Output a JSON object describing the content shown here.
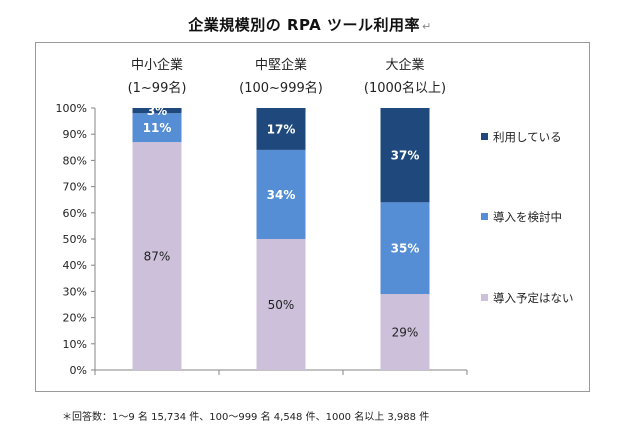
{
  "title": "企業規模別の RPA ツール利用率",
  "title_mark": "↵",
  "footnote": "＊回答数：1～9 名 15,734 件、100～999 名 4,548 件、1000 名以上 3,988 件",
  "chart_data": {
    "type": "bar",
    "stacked": true,
    "categories": [
      "中小企業",
      "中堅企業",
      "大企業"
    ],
    "category_sublabels": [
      "(1~99名)",
      "(100~999名)",
      "(1000名以上)"
    ],
    "series": [
      {
        "name": "導入予定はない",
        "values": [
          87,
          50,
          29
        ],
        "labels": [
          "87%",
          "50%",
          "29%"
        ],
        "color": "#ccc0da",
        "label_color": "#222222"
      },
      {
        "name": "導入を検討中",
        "values": [
          11,
          34,
          35
        ],
        "labels": [
          "11%",
          "34%",
          "35%"
        ],
        "color": "#558ed5",
        "label_color": "#ffffff"
      },
      {
        "name": "利用している",
        "values": [
          3,
          17,
          37
        ],
        "labels": [
          "3%",
          "17%",
          "37%"
        ],
        "color": "#1f497d",
        "label_color": "#ffffff"
      }
    ],
    "legend_order": [
      "利用している",
      "導入を検討中",
      "導入予定はない"
    ],
    "legend_position": "right",
    "y_ticks": [
      "0%",
      "10%",
      "20%",
      "30%",
      "40%",
      "50%",
      "60%",
      "70%",
      "80%",
      "90%",
      "100%"
    ],
    "ylim": [
      0,
      100
    ],
    "grid": false
  }
}
